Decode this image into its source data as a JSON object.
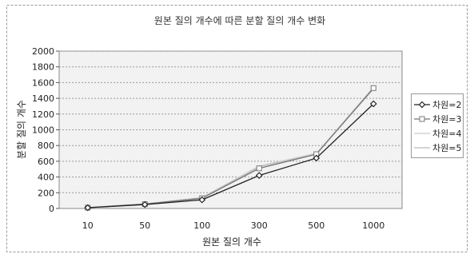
{
  "chart_data": {
    "type": "line",
    "title": "원본 질의 개수에 따른 분할 질의 개수 변화",
    "xlabel": "원본 질의 개수",
    "ylabel": "분할 질의 개수",
    "categories": [
      "10",
      "50",
      "100",
      "300",
      "500",
      "1000"
    ],
    "ylim": [
      0,
      2000
    ],
    "yticks": [
      0,
      200,
      400,
      600,
      800,
      1000,
      1200,
      1400,
      1600,
      1800,
      2000
    ],
    "grid": true,
    "legend_position": "right",
    "series": [
      {
        "name": "차원=2",
        "values": [
          10,
          50,
          110,
          420,
          640,
          1330
        ],
        "color": "#222222",
        "marker": "diamond"
      },
      {
        "name": "차원=3",
        "values": [
          10,
          55,
          130,
          510,
          690,
          1530
        ],
        "color": "#777777",
        "marker": "square"
      },
      {
        "name": "차원=4",
        "values": [
          10,
          60,
          140,
          540,
          700,
          1540
        ],
        "color": "#cccccc",
        "marker": "none"
      },
      {
        "name": "차원=5",
        "values": [
          10,
          58,
          135,
          530,
          695,
          1520
        ],
        "color": "#bbbbbb",
        "marker": "none"
      }
    ]
  }
}
